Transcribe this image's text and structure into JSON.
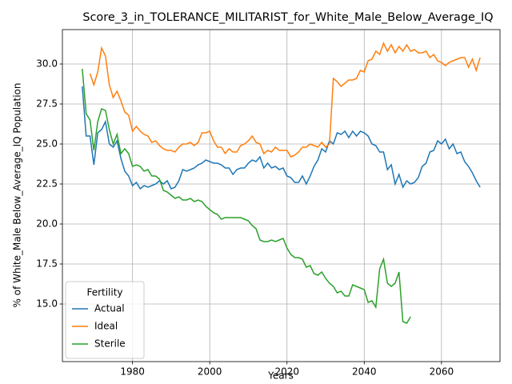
{
  "chart_data": {
    "type": "line",
    "title": "Score_3_in_TOLERANCE_MILITARIST_for_White_Male_Below_Average_IQ",
    "xlabel": "Years",
    "ylabel": "% of White_Male Below_Average_IQ Population",
    "legend_title": "Fertility",
    "legend": "lower left",
    "grid": true,
    "xlim": [
      1961.85,
      2075.15
    ],
    "ylim": [
      11.4,
      32.15
    ],
    "xticks": [
      1980,
      2000,
      2020,
      2040,
      2060
    ],
    "yticks": [
      {
        "value": 15,
        "label": "15.0"
      },
      {
        "value": 17.5,
        "label": "17.5"
      },
      {
        "value": 20,
        "label": "20.0"
      },
      {
        "value": 22.5,
        "label": "22.5"
      },
      {
        "value": 25,
        "label": "25.0"
      },
      {
        "value": 27.5,
        "label": "27.5"
      },
      {
        "value": 30,
        "label": "30.0"
      }
    ],
    "x": [
      1967,
      1968,
      1969,
      1970,
      1971,
      1972,
      1973,
      1974,
      1975,
      1976,
      1977,
      1978,
      1979,
      1980,
      1981,
      1982,
      1983,
      1984,
      1985,
      1986,
      1987,
      1988,
      1989,
      1990,
      1991,
      1992,
      1993,
      1994,
      1995,
      1996,
      1997,
      1998,
      1999,
      2000,
      2001,
      2002,
      2003,
      2004,
      2005,
      2006,
      2007,
      2008,
      2009,
      2010,
      2011,
      2012,
      2013,
      2014,
      2015,
      2016,
      2017,
      2018,
      2019,
      2020,
      2021,
      2022,
      2023,
      2024,
      2025,
      2026,
      2027,
      2028,
      2029,
      2030,
      2031,
      2032,
      2033,
      2034,
      2035,
      2036,
      2037,
      2038,
      2039,
      2040,
      2041,
      2042,
      2043,
      2044,
      2045,
      2046,
      2047,
      2048,
      2049,
      2050,
      2051,
      2052,
      2053,
      2054,
      2055,
      2056,
      2057,
      2058,
      2059,
      2060,
      2061,
      2062,
      2063,
      2064,
      2065,
      2066,
      2067,
      2068,
      2069,
      2070
    ],
    "series": [
      {
        "name": "Actual",
        "color": "#1f77b4",
        "values": [
          28.6,
          25.5,
          25.5,
          23.7,
          25.7,
          25.9,
          26.4,
          25.0,
          24.8,
          25.2,
          24.1,
          23.3,
          23.0,
          22.4,
          22.6,
          22.2,
          22.4,
          22.3,
          22.4,
          22.5,
          22.7,
          22.5,
          22.7,
          22.2,
          22.3,
          22.7,
          23.4,
          23.3,
          23.4,
          23.5,
          23.7,
          23.8,
          24.0,
          23.9,
          23.8,
          23.8,
          23.7,
          23.5,
          23.5,
          23.1,
          23.4,
          23.5,
          23.5,
          23.8,
          24.0,
          23.9,
          24.2,
          23.5,
          23.8,
          23.5,
          23.6,
          23.4,
          23.5,
          23.0,
          22.9,
          22.6,
          22.6,
          23.0,
          22.5,
          23.0,
          23.6,
          24.0,
          24.7,
          24.5,
          25.2,
          25.0,
          25.7,
          25.6,
          25.8,
          25.4,
          25.8,
          25.5,
          25.8,
          25.7,
          25.5,
          25.0,
          24.9,
          24.5,
          24.5,
          23.4,
          23.7,
          22.5,
          23.1,
          22.3,
          22.7,
          22.5,
          22.6,
          22.9,
          23.6,
          23.8,
          24.5,
          24.6,
          25.2,
          25.0,
          25.3,
          24.7,
          25.0,
          24.4,
          24.5,
          23.9,
          23.6,
          23.2,
          22.7,
          22.3
        ]
      },
      {
        "name": "Ideal",
        "color": "#ff7f0e",
        "values": [
          null,
          null,
          29.4,
          28.7,
          29.5,
          31.0,
          30.5,
          28.7,
          27.9,
          28.3,
          27.7,
          27.0,
          26.8,
          25.8,
          26.1,
          25.8,
          25.6,
          25.5,
          25.1,
          25.2,
          24.9,
          24.7,
          24.6,
          24.6,
          24.5,
          24.8,
          25.0,
          25.0,
          25.1,
          24.9,
          25.1,
          25.7,
          25.7,
          25.8,
          25.2,
          24.8,
          24.8,
          24.4,
          24.7,
          24.5,
          24.5,
          24.9,
          25.0,
          25.2,
          25.5,
          25.1,
          25.0,
          24.4,
          24.6,
          24.5,
          24.8,
          24.6,
          24.6,
          24.6,
          24.2,
          24.3,
          24.5,
          24.8,
          24.8,
          25.0,
          24.9,
          24.8,
          25.1,
          24.8,
          25.0,
          29.1,
          28.9,
          28.6,
          28.8,
          29.0,
          29.0,
          29.1,
          29.6,
          29.5,
          30.2,
          30.3,
          30.8,
          30.6,
          31.3,
          30.8,
          31.2,
          30.7,
          31.1,
          30.8,
          31.2,
          30.8,
          30.9,
          30.7,
          30.7,
          30.8,
          30.4,
          30.6,
          30.2,
          30.1,
          29.9,
          30.1,
          30.2,
          30.3,
          30.4,
          30.4,
          29.8,
          30.3,
          29.6,
          30.4
        ]
      },
      {
        "name": "Sterile",
        "color": "#2ca02c",
        "values": [
          29.7,
          26.9,
          26.5,
          24.6,
          26.4,
          27.2,
          27.1,
          25.9,
          25.0,
          25.6,
          24.4,
          24.7,
          24.4,
          23.6,
          23.7,
          23.6,
          23.3,
          23.4,
          23.0,
          23.0,
          22.8,
          22.1,
          22.0,
          21.8,
          21.6,
          21.7,
          21.5,
          21.5,
          21.6,
          21.4,
          21.5,
          21.4,
          21.1,
          20.9,
          20.7,
          20.6,
          20.3,
          20.4,
          20.4,
          20.4,
          20.4,
          20.4,
          20.3,
          20.2,
          19.9,
          19.7,
          19.0,
          18.9,
          18.9,
          19.0,
          18.9,
          19.0,
          19.1,
          18.5,
          18.1,
          17.9,
          17.9,
          17.8,
          17.3,
          17.4,
          16.9,
          16.8,
          17.0,
          16.6,
          16.3,
          16.1,
          15.7,
          15.8,
          15.5,
          15.5,
          16.2,
          16.1,
          16.0,
          15.9,
          15.1,
          15.2,
          14.8,
          17.2,
          17.8,
          16.3,
          16.1,
          16.3,
          17.0,
          13.9,
          13.8,
          14.2,
          null,
          null,
          null,
          null,
          null,
          null,
          null,
          null,
          null,
          null,
          null,
          null,
          null,
          null,
          null,
          null,
          null,
          null
        ]
      }
    ]
  }
}
